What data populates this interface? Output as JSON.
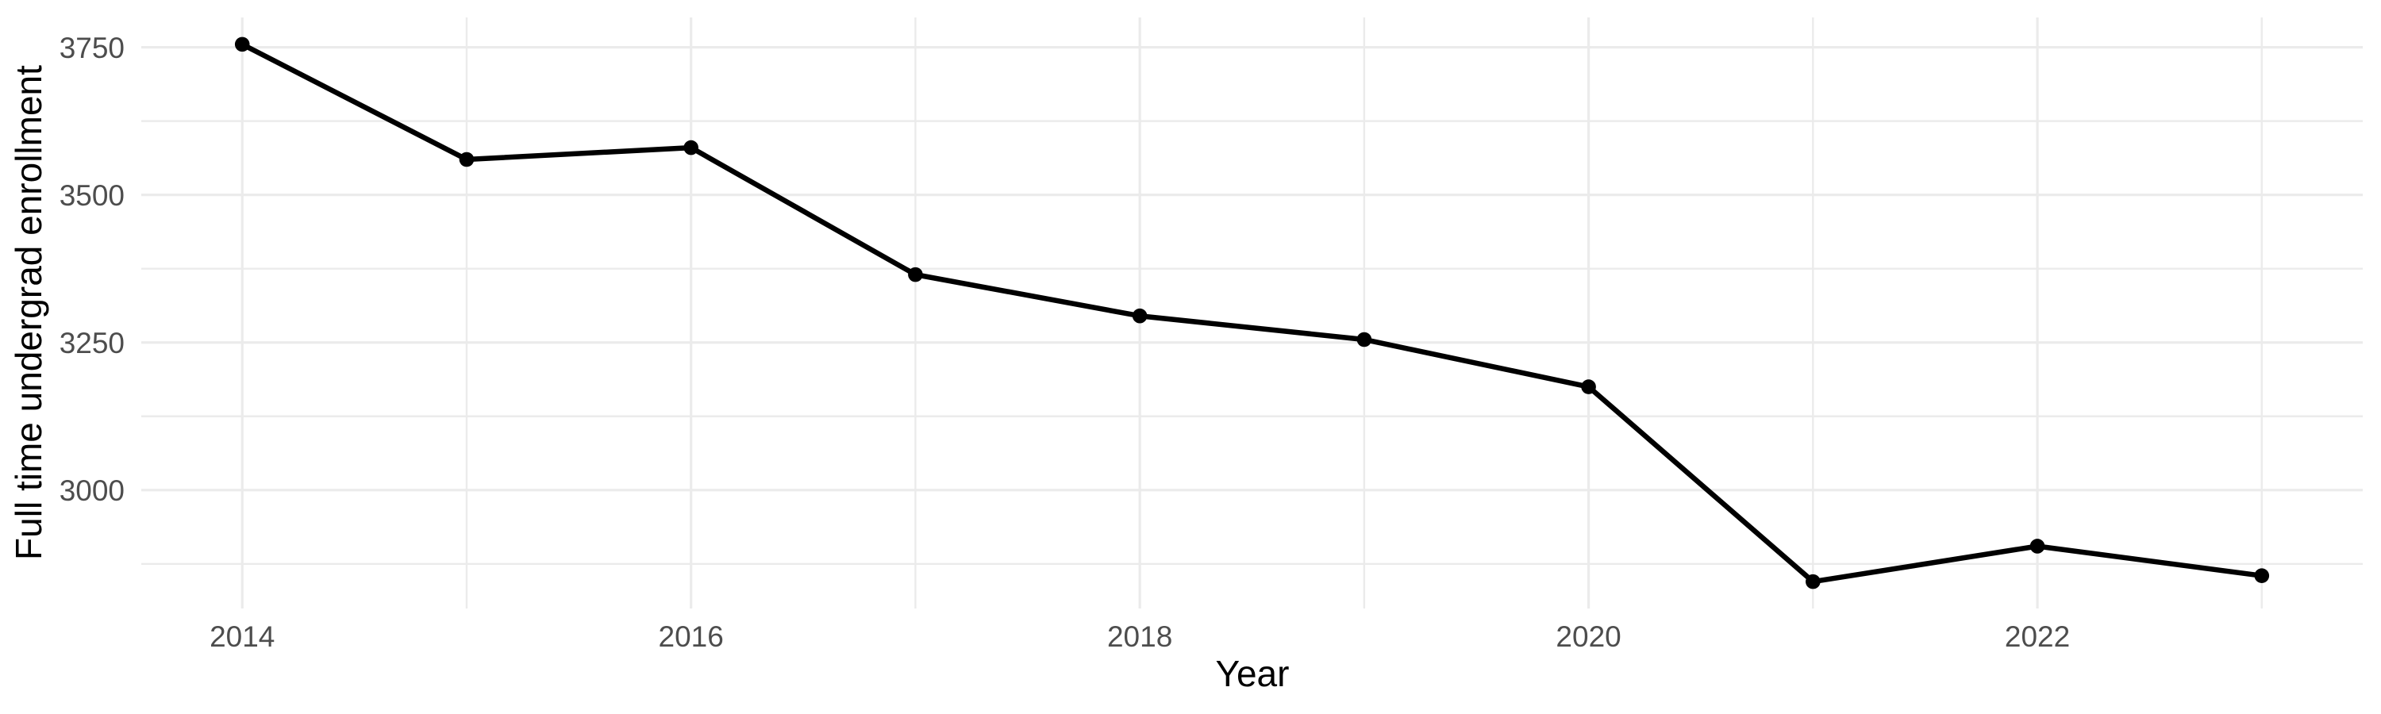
{
  "chart_data": {
    "type": "line",
    "title": "",
    "xlabel": "Year",
    "ylabel": "Full time undergrad enrollment",
    "x": [
      2014,
      2015,
      2016,
      2017,
      2018,
      2019,
      2020,
      2021,
      2022,
      2023
    ],
    "values": [
      3755,
      3560,
      3580,
      3365,
      3295,
      3255,
      3175,
      2845,
      2905,
      2855
    ],
    "xlim": [
      2013.55,
      2023.45
    ],
    "ylim": [
      2799.5,
      3800.5
    ],
    "x_major_ticks": [
      2014,
      2016,
      2018,
      2020,
      2022
    ],
    "x_tick_labels": [
      "2014",
      "2016",
      "2018",
      "2020",
      "2022"
    ],
    "x_minor_gridlines": [
      2015,
      2017,
      2019,
      2021,
      2023
    ],
    "y_major_ticks": [
      3000,
      3250,
      3500,
      3750
    ],
    "y_tick_labels": [
      "3000",
      "3250",
      "3500",
      "3750"
    ],
    "y_minor_gridlines": [
      2875,
      3125,
      3375,
      3625
    ],
    "grid": true,
    "legend": "none",
    "marker": "filled-circle",
    "colors": {
      "line": "#000000",
      "point": "#000000",
      "grid_major": "#EBEBEB",
      "grid_minor": "#EBEBEB",
      "axis_text": "#4D4D4D",
      "axis_title": "#000000",
      "background": "#FFFFFF"
    }
  }
}
